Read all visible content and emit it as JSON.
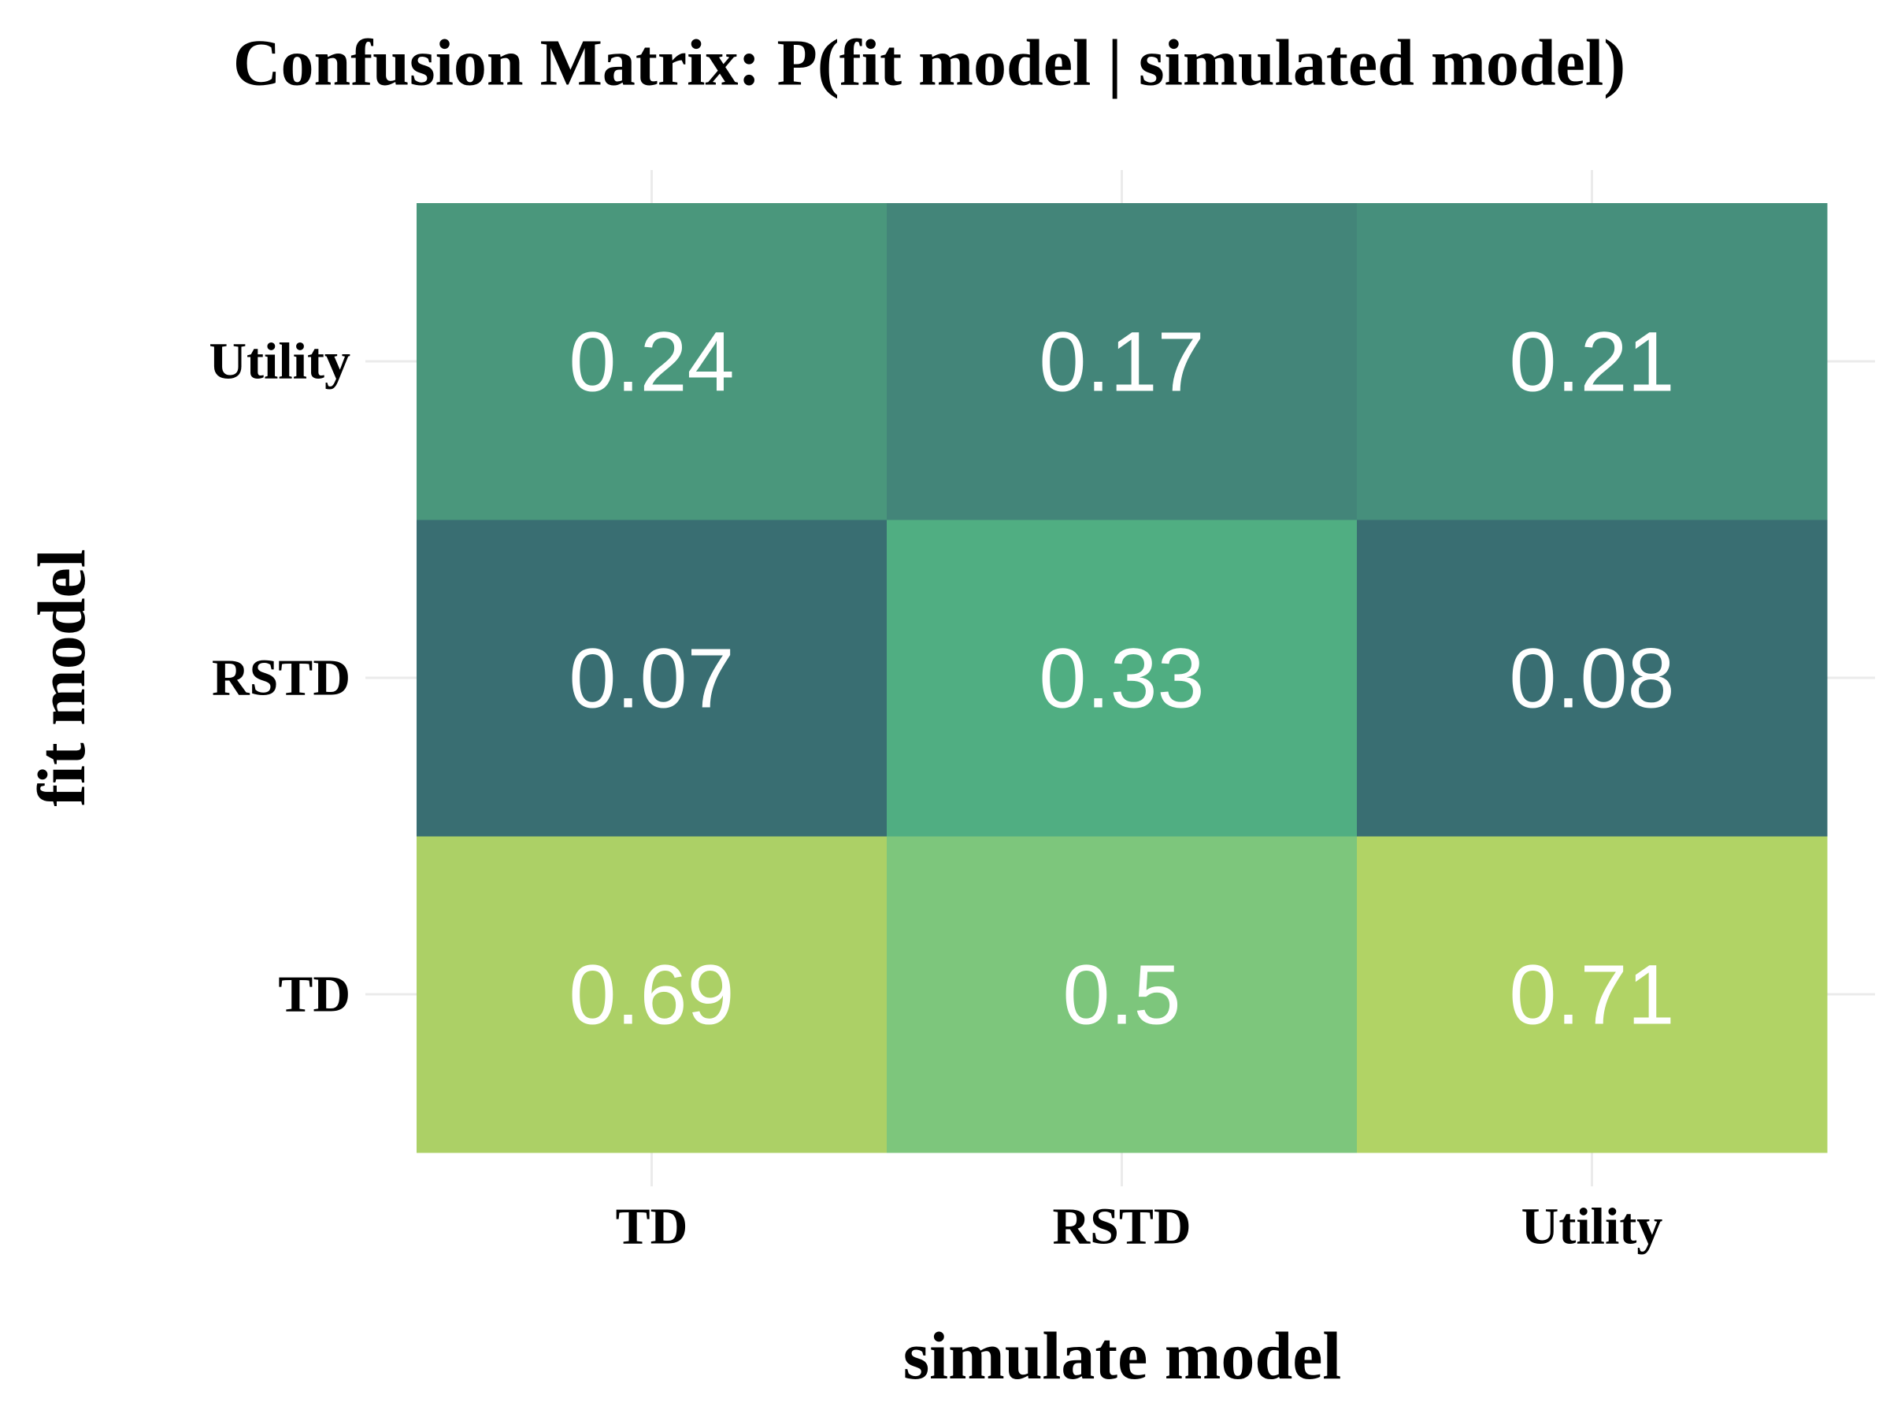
{
  "chart_data": {
    "type": "heatmap",
    "title": "Confusion Matrix: P(fit model | simulated model)",
    "x_label": "simulate model",
    "y_label": "fit model",
    "x_categories": [
      "TD",
      "RSTD",
      "Utility"
    ],
    "y_categories": [
      "TD",
      "RSTD",
      "Utility"
    ],
    "values": [
      [
        0.69,
        0.5,
        0.71
      ],
      [
        0.07,
        0.33,
        0.08
      ],
      [
        0.24,
        0.17,
        0.21
      ]
    ],
    "colors": [
      [
        "#acd066",
        "#7dc67c",
        "#b1d365"
      ],
      [
        "#396e72",
        "#50ae82",
        "#396e72"
      ],
      [
        "#4a977c",
        "#438579",
        "#468f7c"
      ]
    ],
    "grid": true
  }
}
